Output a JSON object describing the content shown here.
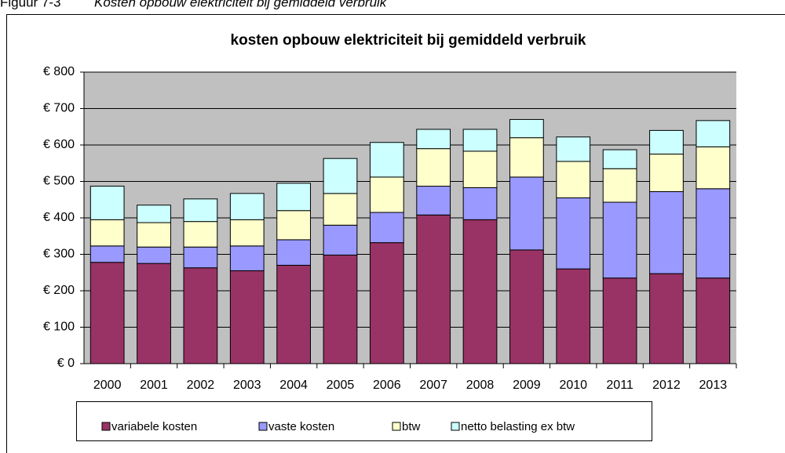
{
  "caption": {
    "number": "Figuur 7-3",
    "text": "Kosten opbouw elektriciteit bij gemiddeld verbruik"
  },
  "chart_data": {
    "type": "stacked_bar",
    "title": "kosten  opbouw elektriciteit bij gemiddeld verbruik",
    "categories": [
      "2000",
      "2001",
      "2002",
      "2003",
      "2004",
      "2005",
      "2006",
      "2007",
      "2008",
      "2009",
      "2010",
      "2011",
      "2012",
      "2013"
    ],
    "series": [
      {
        "name": "variabele kosten",
        "color": "#993366",
        "values": [
          278,
          275,
          263,
          255,
          270,
          298,
          332,
          408,
          395,
          312,
          260,
          235,
          247,
          235
        ]
      },
      {
        "name": "vaste kosten",
        "color": "#9999ff",
        "values": [
          45,
          45,
          57,
          68,
          70,
          82,
          83,
          79,
          88,
          200,
          195,
          208,
          225,
          245
        ]
      },
      {
        "name": "btw",
        "color": "#ffffcc",
        "values": [
          72,
          67,
          70,
          72,
          80,
          87,
          97,
          103,
          100,
          108,
          100,
          92,
          103,
          115
        ]
      },
      {
        "name": "netto belasting ex btw",
        "color": "#ccffff",
        "values": [
          92,
          48,
          62,
          72,
          75,
          96,
          95,
          53,
          60,
          50,
          67,
          52,
          65,
          72
        ]
      }
    ],
    "ylim": [
      0,
      800
    ],
    "yticks": [
      {
        "value": 0,
        "label": "€ 0"
      },
      {
        "value": 100,
        "label": "€ 100"
      },
      {
        "value": 200,
        "label": "€ 200"
      },
      {
        "value": 300,
        "label": "€ 300"
      },
      {
        "value": 400,
        "label": "€ 400"
      },
      {
        "value": 500,
        "label": "€ 500"
      },
      {
        "value": 600,
        "label": "€ 600"
      },
      {
        "value": 700,
        "label": "€ 700"
      },
      {
        "value": 800,
        "label": "€ 800"
      }
    ],
    "grid": true,
    "legend": "bottom"
  }
}
